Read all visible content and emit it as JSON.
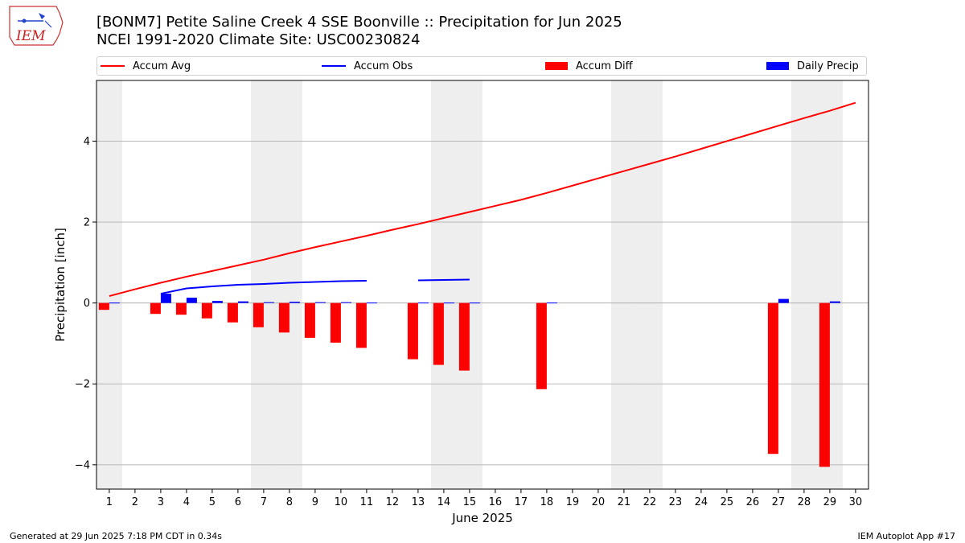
{
  "logo": {
    "text": "IEM"
  },
  "title": {
    "line1": "[BONM7] Petite Saline Creek 4 SSE Boonville :: Precipitation for Jun 2025",
    "line2": "NCEI 1991-2020 Climate Site: USC00230824"
  },
  "colors": {
    "avg": "#ff0000",
    "obs": "#0000ff",
    "diff": "#ff0000",
    "daily": "#0000ff",
    "weekend": "#eeeeee",
    "grid": "#b0b0b0"
  },
  "legend": [
    {
      "label": "Accum Avg",
      "kind": "line",
      "color": "#ff0000"
    },
    {
      "label": "Accum Obs",
      "kind": "line",
      "color": "#0000ff"
    },
    {
      "label": "Accum Diff",
      "kind": "patch",
      "color": "#ff0000"
    },
    {
      "label": "Daily Precip",
      "kind": "patch",
      "color": "#0000ff"
    }
  ],
  "chart_data": {
    "type": "bar",
    "xlabel": "June 2025",
    "ylabel": "Precipitation [inch]",
    "ylim": [
      -4.6,
      5.5
    ],
    "yticks": [
      -4,
      -2,
      0,
      2,
      4
    ],
    "ytick_labels": [
      "−4",
      "−2",
      "0",
      "2",
      "4"
    ],
    "grid": true,
    "legend_position": "top",
    "days": [
      1,
      2,
      3,
      4,
      5,
      6,
      7,
      8,
      9,
      10,
      11,
      12,
      13,
      14,
      15,
      16,
      17,
      18,
      19,
      20,
      21,
      22,
      23,
      24,
      25,
      26,
      27,
      28,
      29,
      30
    ],
    "weekend_days": [
      1,
      7,
      8,
      14,
      15,
      21,
      22,
      28,
      29
    ],
    "series": [
      {
        "name": "Accum Avg",
        "type": "line",
        "points": [
          [
            1,
            0.17
          ],
          [
            2,
            0.34
          ],
          [
            3,
            0.5
          ],
          [
            4,
            0.65
          ],
          [
            5,
            0.79
          ],
          [
            6,
            0.93
          ],
          [
            7,
            1.07
          ],
          [
            8,
            1.23
          ],
          [
            9,
            1.38
          ],
          [
            10,
            1.52
          ],
          [
            11,
            1.66
          ],
          [
            12,
            1.81
          ],
          [
            13,
            1.95
          ],
          [
            14,
            2.1
          ],
          [
            15,
            2.25
          ],
          [
            16,
            2.4
          ],
          [
            17,
            2.55
          ],
          [
            18,
            2.72
          ],
          [
            19,
            2.9
          ],
          [
            20,
            3.08
          ],
          [
            21,
            3.26
          ],
          [
            22,
            3.44
          ],
          [
            23,
            3.62
          ],
          [
            24,
            3.81
          ],
          [
            25,
            4.0
          ],
          [
            26,
            4.19
          ],
          [
            27,
            4.38
          ],
          [
            28,
            4.57
          ],
          [
            29,
            4.75
          ],
          [
            30,
            4.95
          ]
        ]
      },
      {
        "name": "Accum Obs",
        "type": "line",
        "segments": [
          [
            [
              3,
              0.23
            ],
            [
              4,
              0.36
            ],
            [
              5,
              0.41
            ],
            [
              6,
              0.45
            ],
            [
              7,
              0.47
            ],
            [
              8,
              0.5
            ],
            [
              9,
              0.52
            ],
            [
              10,
              0.54
            ],
            [
              11,
              0.55
            ]
          ],
          [
            [
              13,
              0.56
            ],
            [
              14,
              0.57
            ],
            [
              15,
              0.58
            ]
          ]
        ]
      },
      {
        "name": "Accum Diff",
        "type": "bar",
        "points": [
          [
            1,
            -0.17
          ],
          [
            3,
            -0.27
          ],
          [
            4,
            -0.29
          ],
          [
            5,
            -0.38
          ],
          [
            6,
            -0.48
          ],
          [
            7,
            -0.6
          ],
          [
            8,
            -0.73
          ],
          [
            9,
            -0.86
          ],
          [
            10,
            -0.98
          ],
          [
            11,
            -1.11
          ],
          [
            13,
            -1.39
          ],
          [
            14,
            -1.53
          ],
          [
            15,
            -1.67
          ],
          [
            18,
            -2.13
          ],
          [
            27,
            -3.73
          ],
          [
            29,
            -4.05
          ]
        ]
      },
      {
        "name": "Daily Precip",
        "type": "bar",
        "points": [
          [
            1,
            0.01
          ],
          [
            3,
            0.23
          ],
          [
            4,
            0.13
          ],
          [
            5,
            0.05
          ],
          [
            6,
            0.04
          ],
          [
            7,
            0.02
          ],
          [
            8,
            0.03
          ],
          [
            9,
            0.02
          ],
          [
            10,
            0.02
          ],
          [
            11,
            0.01
          ],
          [
            13,
            0.01
          ],
          [
            14,
            0.01
          ],
          [
            15,
            0.01
          ],
          [
            18,
            0.01
          ],
          [
            27,
            0.1
          ],
          [
            29,
            0.04
          ]
        ]
      }
    ]
  },
  "footer": {
    "left": "Generated at 29 Jun 2025 7:18 PM CDT in 0.34s",
    "right": "IEM Autoplot App #17"
  }
}
